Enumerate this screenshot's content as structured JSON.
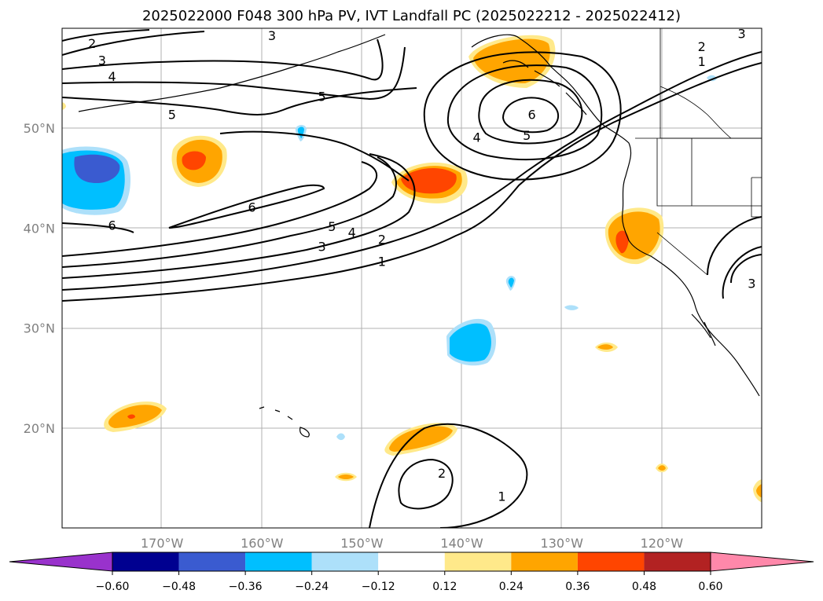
{
  "title": "2025022000 F048 300 hPa PV, IVT Landfall PC (2025022212 - 2025022412)",
  "map": {
    "projection": "PlateCarree",
    "lon_range": [
      -180,
      -110
    ],
    "lat_range": [
      10,
      60
    ],
    "gridlines": true,
    "lon_ticks": [
      {
        "lon": -170,
        "label": "170°W"
      },
      {
        "lon": -160,
        "label": "160°W"
      },
      {
        "lon": -150,
        "label": "150°W"
      },
      {
        "lon": -140,
        "label": "140°W"
      },
      {
        "lon": -130,
        "label": "130°W"
      },
      {
        "lon": -120,
        "label": "120°W"
      }
    ],
    "lat_ticks": [
      {
        "lat": 50,
        "label": "50°N"
      },
      {
        "lat": 40,
        "label": "40°N"
      },
      {
        "lat": 30,
        "label": "30°N"
      },
      {
        "lat": 20,
        "label": "20°N"
      }
    ],
    "contour_labels": [
      {
        "text": "2",
        "lon": -177,
        "lat": 58.5
      },
      {
        "text": "3",
        "lon": -176,
        "lat": 56.8
      },
      {
        "text": "4",
        "lon": -175,
        "lat": 55.2
      },
      {
        "text": "3",
        "lon": -159,
        "lat": 59.3
      },
      {
        "text": "5",
        "lon": -154,
        "lat": 53.2
      },
      {
        "text": "5",
        "lon": -169,
        "lat": 51.4
      },
      {
        "text": "6",
        "lon": -133,
        "lat": 51.4
      },
      {
        "text": "5",
        "lon": -133.5,
        "lat": 49.3
      },
      {
        "text": "4",
        "lon": -138.5,
        "lat": 49.1
      },
      {
        "text": "6",
        "lon": -161,
        "lat": 42.1
      },
      {
        "text": "6",
        "lon": -175,
        "lat": 40.3
      },
      {
        "text": "5",
        "lon": -153,
        "lat": 40.2
      },
      {
        "text": "4",
        "lon": -151,
        "lat": 39.6
      },
      {
        "text": "2",
        "lon": -148,
        "lat": 38.9
      },
      {
        "text": "3",
        "lon": -154,
        "lat": 38.2
      },
      {
        "text": "1",
        "lon": -148,
        "lat": 36.7
      },
      {
        "text": "2",
        "lon": -116,
        "lat": 58.2
      },
      {
        "text": "1",
        "lon": -116,
        "lat": 56.7
      },
      {
        "text": "3",
        "lon": -112,
        "lat": 59.5
      },
      {
        "text": "3",
        "lon": -111,
        "lat": 34.5
      },
      {
        "text": "2",
        "lon": -142,
        "lat": 15.5
      },
      {
        "text": "1",
        "lon": -136,
        "lat": 13.2
      }
    ],
    "contour_levels": [
      1,
      2,
      3,
      4,
      5,
      6
    ]
  },
  "colorbar": {
    "ticks": [
      "−0.60",
      "−0.48",
      "−0.36",
      "−0.24",
      "−0.12",
      "0.12",
      "0.24",
      "0.36",
      "0.48",
      "0.60"
    ],
    "under_color": "#9932CC",
    "over_color": "#FF88AA",
    "colors": [
      "#000090",
      "#3A5BD0",
      "#00BFFF",
      "#ADE0FA",
      "#FFFFFF",
      "#FFE98A",
      "#FFA500",
      "#FF4500",
      "#B22222"
    ]
  },
  "colors": {
    "pos_1": "#FFE98A",
    "pos_2": "#FFA500",
    "pos_3": "#FF4500",
    "neg_1": "#ADE0FA",
    "neg_2": "#00BFFF",
    "neg_3": "#3A5BD0"
  }
}
